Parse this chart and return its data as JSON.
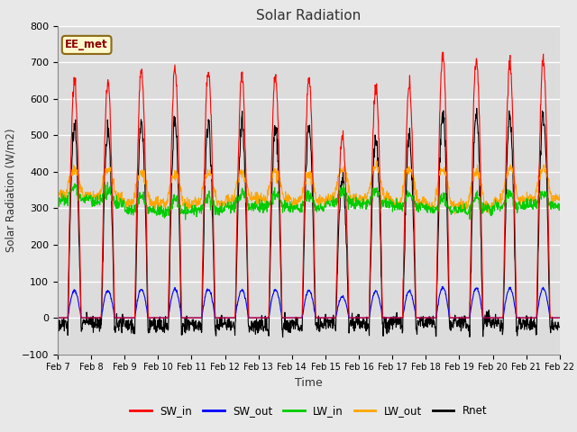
{
  "title": "Solar Radiation",
  "xlabel": "Time",
  "ylabel": "Solar Radiation (W/m2)",
  "ylim": [
    -100,
    800
  ],
  "yticks": [
    -100,
    0,
    100,
    200,
    300,
    400,
    500,
    600,
    700,
    800
  ],
  "n_days": 15,
  "points_per_day": 96,
  "series": {
    "SW_in": {
      "color": "#FF0000",
      "lw": 0.8
    },
    "SW_out": {
      "color": "#0000FF",
      "lw": 0.8
    },
    "LW_in": {
      "color": "#00CC00",
      "lw": 0.8
    },
    "LW_out": {
      "color": "#FFA500",
      "lw": 0.8
    },
    "Rnet": {
      "color": "#000000",
      "lw": 0.8
    }
  },
  "legend_label": "EE_met",
  "legend_box_color": "#FFFACD",
  "legend_box_edge": "#8B6914",
  "bg_color": "#E8E8E8",
  "plot_bg": "#DCDCDC",
  "grid_color": "#FFFFFF",
  "xtick_labels": [
    "Feb 7",
    "Feb 8",
    "Feb 9",
    "Feb 10",
    "Feb 11",
    "Feb 12",
    "Feb 13",
    "Feb 14",
    "Feb 15",
    "Feb 16",
    "Feb 17",
    "Feb 18",
    "Feb 19",
    "Feb 20",
    "Feb 21",
    "Feb 22"
  ],
  "sw_in_peaks": [
    645,
    645,
    678,
    680,
    678,
    662,
    665,
    655,
    500,
    635,
    636,
    725,
    710,
    700,
    705
  ],
  "lw_in_bases": [
    325,
    315,
    295,
    290,
    295,
    305,
    305,
    300,
    315,
    315,
    305,
    295,
    295,
    305,
    310
  ],
  "lw_out_bases": [
    335,
    330,
    315,
    310,
    315,
    325,
    325,
    318,
    328,
    328,
    318,
    308,
    308,
    320,
    325
  ],
  "lw_out_day_extra": [
    70,
    75,
    80,
    85,
    80,
    70,
    75,
    75,
    80,
    85,
    90,
    100,
    95,
    90,
    85
  ]
}
